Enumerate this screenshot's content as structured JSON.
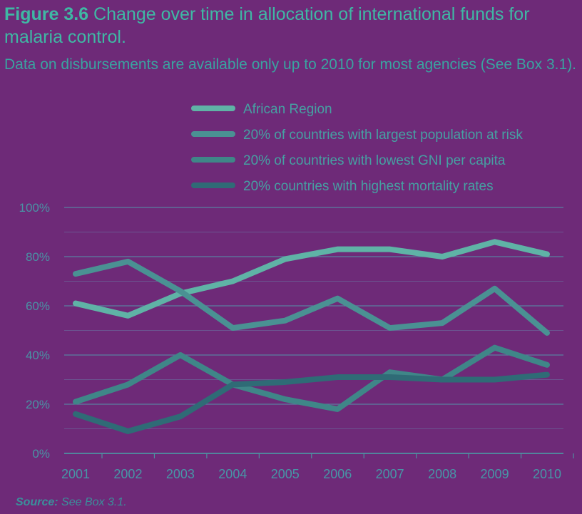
{
  "caption": {
    "figure_label": "Figure 3.6",
    "title": "Change over time in allocation of international funds for malaria control.",
    "subtitle": "Data on disbursements are available only up to 2010 for most agencies (See Box 3.1)."
  },
  "source": {
    "label": "Source:",
    "text": "See Box 3.1."
  },
  "chart_data": {
    "type": "line",
    "x": [
      "2001",
      "2002",
      "2003",
      "2004",
      "2005",
      "2006",
      "2007",
      "2008",
      "2009",
      "2010"
    ],
    "y_ticks": [
      "0%",
      "20%",
      "40%",
      "60%",
      "80%",
      "100%"
    ],
    "ylim": [
      0,
      100
    ],
    "grid": true,
    "legend_position": "top",
    "series": [
      {
        "name": "African Region",
        "color": "#5fb3a6",
        "values": [
          61,
          56,
          65,
          70,
          79,
          83,
          83,
          80,
          86,
          81
        ]
      },
      {
        "name": "20% of countries with largest population at risk",
        "color": "#4a9193",
        "values": [
          73,
          78,
          66,
          51,
          54,
          63,
          51,
          53,
          67,
          49
        ]
      },
      {
        "name": "20% of countries with lowest GNI per capita",
        "color": "#3f8688",
        "values": [
          21,
          28,
          40,
          28,
          22,
          18,
          33,
          30,
          43,
          36
        ]
      },
      {
        "name": "20% countries with highest mortality rates",
        "color": "#2f6b76",
        "values": [
          16,
          9,
          15,
          28,
          29,
          31,
          31,
          30,
          30,
          32
        ]
      }
    ]
  }
}
